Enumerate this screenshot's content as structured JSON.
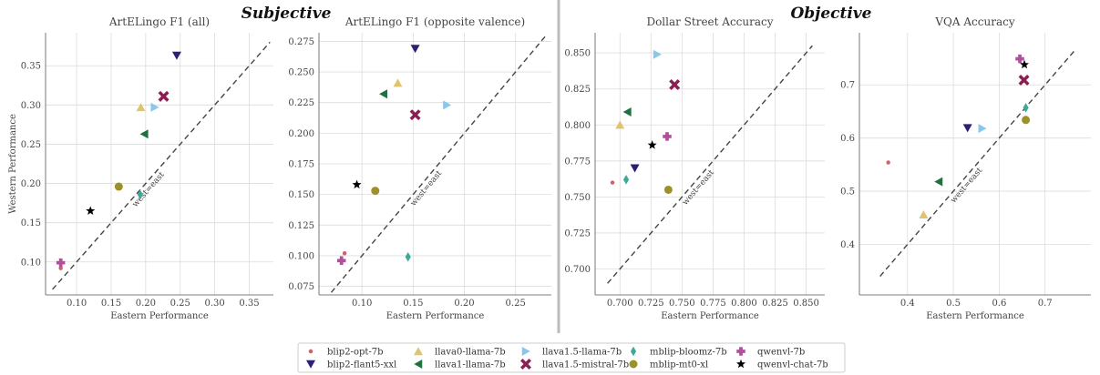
{
  "figure": {
    "section_titles": [
      "Subjective",
      "Objective"
    ]
  },
  "legend": [
    {
      "name": "blip2-opt-7b",
      "marker": "circle-small",
      "color": "#d1606f"
    },
    {
      "name": "blip2-flant5-xxl",
      "marker": "triangle-down",
      "color": "#2a2074"
    },
    {
      "name": "llava0-llama-7b",
      "marker": "triangle-up",
      "color": "#dfc470"
    },
    {
      "name": "llava1-llama-7b",
      "marker": "triangle-left",
      "color": "#1f7140"
    },
    {
      "name": "llava1.5-llama-7b",
      "marker": "triangle-right",
      "color": "#8ac7ea"
    },
    {
      "name": "llava1.5-mistral-7b",
      "marker": "x",
      "color": "#8b1f52"
    },
    {
      "name": "mblip-bloomz-7b",
      "marker": "diamond",
      "color": "#3ca99a"
    },
    {
      "name": "mblip-mt0-xl",
      "marker": "circle",
      "color": "#9b9128"
    },
    {
      "name": "qwenvl-7b",
      "marker": "plus",
      "color": "#b24f9d"
    },
    {
      "name": "qwenvl-chat-7b",
      "marker": "star",
      "color": "#000000"
    }
  ],
  "chart_data": [
    {
      "type": "scatter",
      "title": "ArtELingo F1 (all)",
      "xlabel": "Eastern Performance",
      "ylabel": "Western Performance",
      "xlim": [
        0.055,
        0.385
      ],
      "ylim": [
        0.058,
        0.392
      ],
      "xticks": [
        0.1,
        0.15,
        0.2,
        0.25,
        0.3,
        0.35
      ],
      "yticks": [
        0.1,
        0.15,
        0.2,
        0.25,
        0.3,
        0.35
      ],
      "xtick_labels": [
        "0.10",
        "0.15",
        "0.20",
        "0.25",
        "0.30",
        "0.35"
      ],
      "ytick_labels": [
        "0.10",
        "0.15",
        "0.20",
        "0.25",
        "0.30",
        "0.35"
      ],
      "diagonal_label": "west=east",
      "diagonal": [
        0.065,
        0.38
      ],
      "points": [
        {
          "model": "blip2-opt-7b",
          "x": 0.077,
          "y": 0.092
        },
        {
          "model": "blip2-flant5-xxl",
          "x": 0.245,
          "y": 0.363
        },
        {
          "model": "llava0-llama-7b",
          "x": 0.193,
          "y": 0.297
        },
        {
          "model": "llava1-llama-7b",
          "x": 0.198,
          "y": 0.263
        },
        {
          "model": "llava1.5-llama-7b",
          "x": 0.213,
          "y": 0.297
        },
        {
          "model": "llava1.5-mistral-7b",
          "x": 0.226,
          "y": 0.311
        },
        {
          "model": "mblip-bloomz-7b",
          "x": 0.192,
          "y": 0.186
        },
        {
          "model": "mblip-mt0-xl",
          "x": 0.161,
          "y": 0.196
        },
        {
          "model": "qwenvl-7b",
          "x": 0.077,
          "y": 0.099
        },
        {
          "model": "qwenvl-chat-7b",
          "x": 0.12,
          "y": 0.165
        }
      ]
    },
    {
      "type": "scatter",
      "title": "ArtELingo F1 (opposite valence)",
      "xlabel": "Eastern Performance",
      "ylabel": "",
      "xlim": [
        0.058,
        0.285
      ],
      "ylim": [
        0.068,
        0.282
      ],
      "xticks": [
        0.1,
        0.15,
        0.2,
        0.25
      ],
      "yticks": [
        0.075,
        0.1,
        0.125,
        0.15,
        0.175,
        0.2,
        0.225,
        0.25,
        0.275
      ],
      "xtick_labels": [
        "0.10",
        "0.15",
        "0.20",
        "0.25"
      ],
      "ytick_labels": [
        "0.075",
        "0.100",
        "0.125",
        "0.150",
        "0.175",
        "0.200",
        "0.225",
        "0.250",
        "0.275"
      ],
      "diagonal_label": "west=east",
      "diagonal": [
        0.07,
        0.28
      ],
      "points": [
        {
          "model": "blip2-opt-7b",
          "x": 0.083,
          "y": 0.102
        },
        {
          "model": "blip2-flant5-xxl",
          "x": 0.152,
          "y": 0.269
        },
        {
          "model": "llava0-llama-7b",
          "x": 0.135,
          "y": 0.241
        },
        {
          "model": "llava1-llama-7b",
          "x": 0.121,
          "y": 0.232
        },
        {
          "model": "llava1.5-llama-7b",
          "x": 0.183,
          "y": 0.223
        },
        {
          "model": "llava1.5-mistral-7b",
          "x": 0.152,
          "y": 0.215
        },
        {
          "model": "mblip-bloomz-7b",
          "x": 0.145,
          "y": 0.099
        },
        {
          "model": "mblip-mt0-xl",
          "x": 0.113,
          "y": 0.153
        },
        {
          "model": "qwenvl-7b",
          "x": 0.08,
          "y": 0.096
        },
        {
          "model": "qwenvl-chat-7b",
          "x": 0.095,
          "y": 0.158
        }
      ]
    },
    {
      "type": "scatter",
      "title": "Dollar Street Accuracy",
      "xlabel": "Eastern Performance",
      "ylabel": "",
      "xlim": [
        0.68,
        0.865
      ],
      "ylim": [
        0.682,
        0.864
      ],
      "xticks": [
        0.7,
        0.725,
        0.75,
        0.775,
        0.8,
        0.825,
        0.85
      ],
      "yticks": [
        0.7,
        0.725,
        0.75,
        0.775,
        0.8,
        0.825,
        0.85
      ],
      "xtick_labels": [
        "0.700",
        "0.725",
        "0.750",
        "0.775",
        "0.800",
        "0.825",
        "0.850"
      ],
      "ytick_labels": [
        "0.700",
        "0.725",
        "0.750",
        "0.775",
        "0.800",
        "0.825",
        "0.850"
      ],
      "diagonal_label": "west=east",
      "diagonal": [
        0.69,
        0.855
      ],
      "points": [
        {
          "model": "blip2-opt-7b",
          "x": 0.694,
          "y": 0.76
        },
        {
          "model": "blip2-flant5-xxl",
          "x": 0.712,
          "y": 0.77
        },
        {
          "model": "llava0-llama-7b",
          "x": 0.7,
          "y": 0.8
        },
        {
          "model": "llava1-llama-7b",
          "x": 0.706,
          "y": 0.809
        },
        {
          "model": "llava1.5-llama-7b",
          "x": 0.73,
          "y": 0.849
        },
        {
          "model": "llava1.5-mistral-7b",
          "x": 0.744,
          "y": 0.828
        },
        {
          "model": "mblip-bloomz-7b",
          "x": 0.705,
          "y": 0.762
        },
        {
          "model": "mblip-mt0-xl",
          "x": 0.739,
          "y": 0.755
        },
        {
          "model": "qwenvl-7b",
          "x": 0.738,
          "y": 0.792
        },
        {
          "model": "qwenvl-chat-7b",
          "x": 0.726,
          "y": 0.786
        }
      ]
    },
    {
      "type": "scatter",
      "title": "VQA Accuracy",
      "xlabel": "Eastern Performance",
      "ylabel": "",
      "xlim": [
        0.295,
        0.8
      ],
      "ylim": [
        0.305,
        0.798
      ],
      "xticks": [
        0.4,
        0.5,
        0.6,
        0.7
      ],
      "yticks": [
        0.4,
        0.5,
        0.6,
        0.7
      ],
      "xtick_labels": [
        "0.4",
        "0.5",
        "0.6",
        "0.7"
      ],
      "ytick_labels": [
        "0.4",
        "0.5",
        "0.6",
        "0.7"
      ],
      "diagonal_label": "west=east",
      "diagonal": [
        0.34,
        0.765
      ],
      "points": [
        {
          "model": "blip2-opt-7b",
          "x": 0.358,
          "y": 0.554
        },
        {
          "model": "blip2-flant5-xxl",
          "x": 0.531,
          "y": 0.619
        },
        {
          "model": "llava0-llama-7b",
          "x": 0.435,
          "y": 0.456
        },
        {
          "model": "llava1-llama-7b",
          "x": 0.468,
          "y": 0.518
        },
        {
          "model": "llava1.5-llama-7b",
          "x": 0.563,
          "y": 0.618
        },
        {
          "model": "llava1.5-mistral-7b",
          "x": 0.654,
          "y": 0.709
        },
        {
          "model": "mblip-bloomz-7b",
          "x": 0.658,
          "y": 0.657
        },
        {
          "model": "mblip-mt0-xl",
          "x": 0.658,
          "y": 0.634
        },
        {
          "model": "qwenvl-7b",
          "x": 0.645,
          "y": 0.749
        },
        {
          "model": "qwenvl-chat-7b",
          "x": 0.655,
          "y": 0.738
        }
      ]
    }
  ]
}
